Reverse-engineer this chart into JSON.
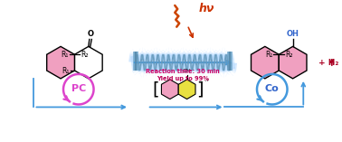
{
  "bg_color": "#ffffff",
  "reaction_time_text": "Reaction time: 30 min",
  "yield_text": "Yield up to 99%",
  "hv_text": "hν",
  "pc_text": "PC",
  "co_text": "Co",
  "oh_text": "OH",
  "h2_text": "+ H₂",
  "pink_color": "#F0A0C0",
  "yellow_color": "#E8E040",
  "blue_color": "#3366CC",
  "navy_blue": "#1144AA",
  "magenta_color": "#DD44CC",
  "red_orange_color": "#CC3300",
  "crimson_color": "#CC0066",
  "dark_red": "#AA0022",
  "arrow_blue": "#4499DD",
  "tube_color": "#BBDDFF",
  "tube_outline": "#88BBEE"
}
